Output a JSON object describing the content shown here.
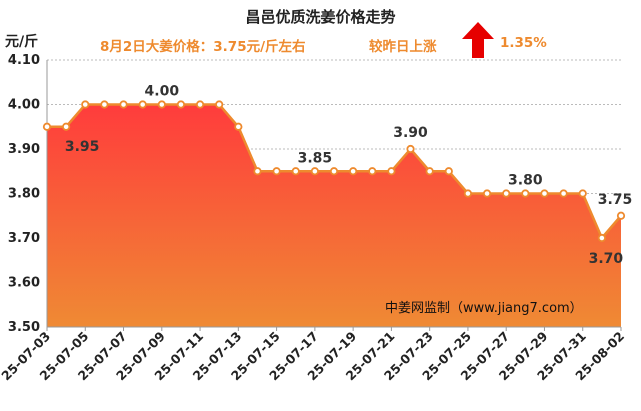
{
  "header": {
    "title": "昌邑优质洗姜价格走势",
    "subtitle": "8月2日大姜价格：3.75元/斤左右",
    "change_text": "较昨日上涨",
    "change_percent": "1.35%",
    "arrow_icon": "up-arrow-icon",
    "arrow_color": "#e60000"
  },
  "watermark": "中姜网监制（www.jiang7.com）",
  "chart_data": {
    "type": "area",
    "title": "昌邑优质洗姜价格走势",
    "ylabel": "元/斤",
    "xlabel": "",
    "ylim": [
      3.5,
      4.1
    ],
    "yticks": [
      "3.50",
      "3.60",
      "3.70",
      "3.80",
      "3.90",
      "4.00",
      "4.10"
    ],
    "grid": "horizontal-dotted",
    "x": [
      "25-07-03",
      "25-07-04",
      "25-07-05",
      "25-07-06",
      "25-07-07",
      "25-07-08",
      "25-07-09",
      "25-07-10",
      "25-07-11",
      "25-07-12",
      "25-07-13",
      "25-07-14",
      "25-07-15",
      "25-07-16",
      "25-07-17",
      "25-07-18",
      "25-07-19",
      "25-07-20",
      "25-07-21",
      "25-07-22",
      "25-07-23",
      "25-07-24",
      "25-07-25",
      "25-07-26",
      "25-07-27",
      "25-07-28",
      "25-07-29",
      "25-07-30",
      "25-07-31",
      "25-08-01",
      "25-08-02"
    ],
    "xticks": [
      "25-07-03",
      "25-07-05",
      "25-07-07",
      "25-07-09",
      "25-07-11",
      "25-07-13",
      "25-07-15",
      "25-07-17",
      "25-07-19",
      "25-07-21",
      "25-07-23",
      "25-07-25",
      "25-07-27",
      "25-07-29",
      "25-07-31",
      "25-08-02"
    ],
    "series": [
      {
        "values": [
          3.95,
          3.95,
          4.0,
          4.0,
          4.0,
          4.0,
          4.0,
          4.0,
          4.0,
          4.0,
          3.95,
          3.85,
          3.85,
          3.85,
          3.85,
          3.85,
          3.85,
          3.85,
          3.85,
          3.9,
          3.85,
          3.85,
          3.8,
          3.8,
          3.8,
          3.8,
          3.8,
          3.8,
          3.8,
          3.7,
          3.75
        ]
      }
    ],
    "data_labels": [
      {
        "index": 1,
        "text": "3.95"
      },
      {
        "index": 6,
        "text": "4.00"
      },
      {
        "index": 14,
        "text": "3.85"
      },
      {
        "index": 19,
        "text": "3.90"
      },
      {
        "index": 25,
        "text": "3.80"
      },
      {
        "index": 29,
        "text": "3.70"
      },
      {
        "index": 30,
        "text": "3.75"
      }
    ],
    "colors": {
      "line": "#ee8a2e",
      "marker_fill": "#ffffff",
      "fill_top": "#ff3c3c",
      "fill_bottom": "#ef8a34"
    }
  }
}
